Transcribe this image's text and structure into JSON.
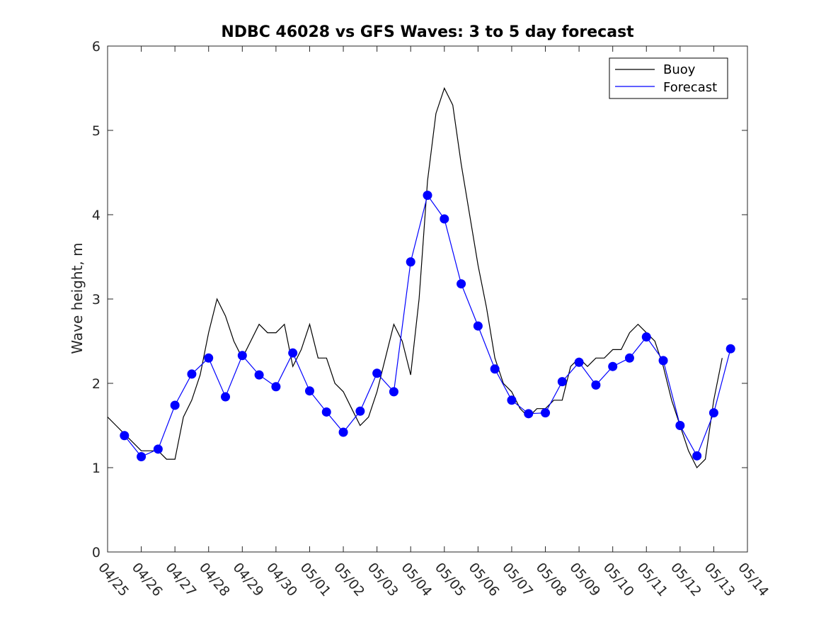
{
  "chart_data": {
    "type": "line",
    "title": "NDBC 46028 vs GFS Waves: 3 to 5 day forecast",
    "xlabel": "",
    "ylabel": "Wave height, m",
    "xlim": [
      "04/25",
      "05/14"
    ],
    "ylim": [
      0,
      6
    ],
    "x_ticks": [
      "04/25",
      "04/26",
      "04/27",
      "04/28",
      "04/29",
      "04/30",
      "05/01",
      "05/02",
      "05/03",
      "05/04",
      "05/05",
      "05/06",
      "05/07",
      "05/08",
      "05/09",
      "05/10",
      "05/11",
      "05/12",
      "05/13",
      "05/14"
    ],
    "y_ticks": [
      0,
      1,
      2,
      3,
      4,
      5,
      6
    ],
    "grid": false,
    "legend_position": "top-right",
    "colors": {
      "buoy": "#000000",
      "forecast": "#0000ff",
      "markers": "#0000ff"
    },
    "series": [
      {
        "name": "Buoy",
        "color": "#000000",
        "x": [
          "04/25",
          "04/25 06:00",
          "04/25 12:00",
          "04/25 18:00",
          "04/26",
          "04/26 06:00",
          "04/26 12:00",
          "04/26 18:00",
          "04/27",
          "04/27 06:00",
          "04/27 12:00",
          "04/27 18:00",
          "04/28",
          "04/28 06:00",
          "04/28 12:00",
          "04/28 18:00",
          "04/29",
          "04/29 06:00",
          "04/29 12:00",
          "04/29 18:00",
          "04/30",
          "04/30 06:00",
          "04/30 12:00",
          "04/30 18:00",
          "05/01",
          "05/01 06:00",
          "05/01 12:00",
          "05/01 18:00",
          "05/02",
          "05/02 06:00",
          "05/02 12:00",
          "05/02 18:00",
          "05/03",
          "05/03 06:00",
          "05/03 12:00",
          "05/03 18:00",
          "05/04",
          "05/04 06:00",
          "05/04 12:00",
          "05/04 18:00",
          "05/05",
          "05/05 06:00",
          "05/05 12:00",
          "05/05 18:00",
          "05/06",
          "05/06 06:00",
          "05/06 12:00",
          "05/06 18:00",
          "05/07",
          "05/07 06:00",
          "05/07 12:00",
          "05/07 18:00",
          "05/08",
          "05/08 06:00",
          "05/08 12:00",
          "05/08 18:00",
          "05/09",
          "05/09 06:00",
          "05/09 12:00",
          "05/09 18:00",
          "05/10",
          "05/10 06:00",
          "05/10 12:00",
          "05/10 18:00",
          "05/11",
          "05/11 06:00",
          "05/11 12:00",
          "05/11 18:00",
          "05/12",
          "05/12 06:00",
          "05/12 12:00",
          "05/12 18:00",
          "05/13",
          "05/13 06:00"
        ],
        "values": [
          1.6,
          1.5,
          1.4,
          1.3,
          1.2,
          1.2,
          1.2,
          1.1,
          1.1,
          1.6,
          1.8,
          2.1,
          2.6,
          3.0,
          2.8,
          2.5,
          2.3,
          2.5,
          2.7,
          2.6,
          2.6,
          2.7,
          2.2,
          2.4,
          2.7,
          2.3,
          2.3,
          2.0,
          1.9,
          1.7,
          1.5,
          1.6,
          1.9,
          2.3,
          2.7,
          2.5,
          2.1,
          3.0,
          4.4,
          5.2,
          5.5,
          5.3,
          4.6,
          4.0,
          3.4,
          2.9,
          2.3,
          2.0,
          1.9,
          1.7,
          1.6,
          1.7,
          1.7,
          1.8,
          1.8,
          2.2,
          2.3,
          2.2,
          2.3,
          2.3,
          2.4,
          2.4,
          2.6,
          2.7,
          2.6,
          2.5,
          2.2,
          1.8,
          1.5,
          1.2,
          1.0,
          1.1,
          1.8,
          2.3
        ]
      },
      {
        "name": "Forecast",
        "color": "#0000ff",
        "x": [
          "04/25 12:00",
          "04/26",
          "04/26 12:00",
          "04/27",
          "04/27 12:00",
          "04/28",
          "04/28 12:00",
          "04/29",
          "04/29 12:00",
          "04/30",
          "04/30 12:00",
          "05/01",
          "05/01 12:00",
          "05/02",
          "05/02 12:00",
          "05/03",
          "05/03 12:00",
          "05/04",
          "05/04 12:00",
          "05/05",
          "05/05 12:00",
          "05/06",
          "05/06 12:00",
          "05/07",
          "05/07 12:00",
          "05/08",
          "05/08 12:00",
          "05/09",
          "05/09 12:00",
          "05/10",
          "05/10 12:00",
          "05/11",
          "05/11 12:00",
          "05/12",
          "05/12 12:00",
          "05/13",
          "05/13 12:00"
        ],
        "values": [
          1.38,
          1.13,
          1.22,
          1.74,
          2.11,
          2.3,
          1.84,
          2.33,
          2.1,
          1.96,
          2.36,
          1.91,
          1.66,
          1.42,
          1.67,
          2.12,
          1.9,
          3.44,
          4.23,
          3.95,
          3.18,
          2.68,
          2.17,
          1.8,
          1.64,
          1.65,
          2.02,
          2.25,
          1.98,
          2.2,
          2.3,
          2.55,
          2.27,
          1.5,
          1.14,
          1.65,
          2.41
        ]
      }
    ],
    "forecast_runs_note": ""
  }
}
